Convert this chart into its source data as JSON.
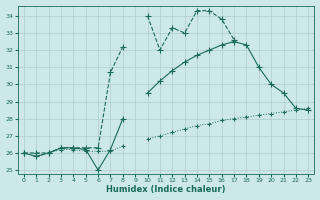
{
  "xlabel": "Humidex (Indice chaleur)",
  "background_color": "#cce8e8",
  "grid_color": "#b0cccc",
  "line_color": "#1a6b5a",
  "xlim": [
    -0.5,
    23.5
  ],
  "ylim": [
    24.8,
    34.6
  ],
  "yticks": [
    25,
    26,
    27,
    28,
    29,
    30,
    31,
    32,
    33,
    34
  ],
  "xticks": [
    0,
    1,
    2,
    3,
    4,
    5,
    6,
    7,
    8,
    9,
    10,
    11,
    12,
    13,
    14,
    15,
    16,
    17,
    18,
    19,
    20,
    21,
    22,
    23
  ],
  "series": [
    {
      "x": [
        0,
        1,
        2,
        3,
        4,
        5,
        6,
        7,
        8,
        9,
        10,
        11,
        12,
        13,
        14,
        15,
        16,
        17,
        18,
        19,
        20,
        21,
        22,
        23
      ],
      "y": [
        26,
        26,
        26,
        26.3,
        26.3,
        26.3,
        26.3,
        30.7,
        32.2,
        null,
        34.0,
        32.0,
        33.3,
        33.0,
        34.3,
        34.3,
        33.8,
        32.6,
        null,
        null,
        null,
        null,
        null,
        null
      ],
      "color": "#1a6b5a",
      "linewidth": 0.8,
      "marker": "+",
      "markersize": 4,
      "linestyle": "--"
    },
    {
      "x": [
        0,
        1,
        2,
        3,
        4,
        5,
        6,
        7,
        8,
        9,
        10,
        11,
        12,
        13,
        14,
        15,
        16,
        17,
        18,
        19,
        20,
        21,
        22,
        23
      ],
      "y": [
        26,
        25.8,
        26,
        26.3,
        26.3,
        26.2,
        25.0,
        26.2,
        28.0,
        null,
        29.5,
        30.2,
        30.8,
        31.3,
        31.7,
        32.0,
        32.3,
        32.5,
        32.3,
        31.0,
        30.0,
        29.5,
        28.6,
        28.5
      ],
      "color": "#1a6b5a",
      "linewidth": 0.8,
      "marker": "+",
      "markersize": 4,
      "linestyle": "-"
    },
    {
      "x": [
        0,
        1,
        2,
        3,
        4,
        5,
        6,
        7,
        8,
        9,
        10,
        11,
        12,
        13,
        14,
        15,
        16,
        17,
        18,
        19,
        20,
        21,
        22,
        23
      ],
      "y": [
        26,
        25.8,
        26,
        26.2,
        26.2,
        26.1,
        26.1,
        26.1,
        26.4,
        null,
        26.8,
        27.0,
        27.2,
        27.4,
        27.6,
        27.7,
        27.9,
        28.0,
        28.1,
        28.2,
        28.3,
        28.4,
        28.5,
        28.6
      ],
      "color": "#1a6b5a",
      "linewidth": 0.7,
      "marker": "+",
      "markersize": 3,
      "linestyle": ":"
    }
  ]
}
